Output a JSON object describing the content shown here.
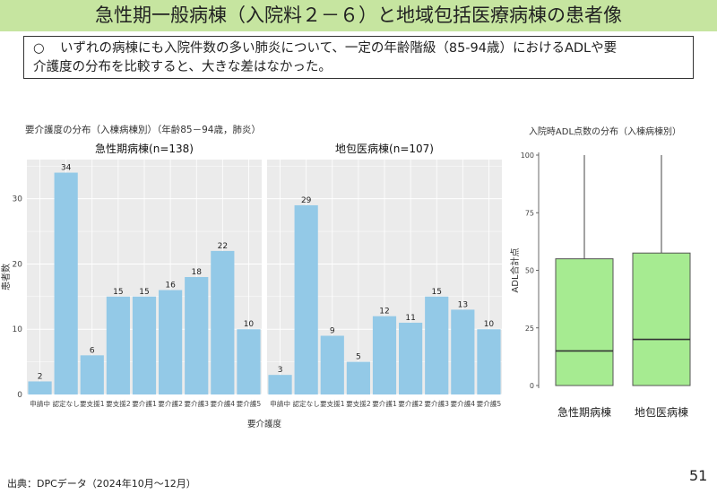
{
  "title": "急性期一般病棟（入院料２－６）と地域包括医療病棟の患者像",
  "note": {
    "bullet": "○",
    "text_line1": "いずれの病棟にも入院件数の多い肺炎について、一定の年齢階級（85-94歳）におけるADLや要",
    "text_line2": "介護度の分布を比較すると、大きな差はなかった。"
  },
  "footer": {
    "source": "出典：DPCデータ（2024年10月～12月）",
    "page_number": "51"
  },
  "colors": {
    "bar": "#93c9e7",
    "box": "#a6eb91",
    "title_bg": "#c6e5a0",
    "panel": "#ebebeb",
    "grid": "#ffffff"
  },
  "chart_data": [
    {
      "type": "bar",
      "title": "要介護度の分布（入棟病棟別）（年齢85－94歳，肺炎）",
      "xlabel": "要介護度",
      "ylabel": "患者数",
      "ylim": [
        0,
        36
      ],
      "yticks": [
        0,
        10,
        20,
        30
      ],
      "categories": [
        "申請中",
        "認定なし",
        "要支援1",
        "要支援2",
        "要介護1",
        "要介護2",
        "要介護3",
        "要介護4",
        "要介護5"
      ],
      "grid": true,
      "facets": [
        {
          "name": "急性期病棟(n=138)",
          "values": [
            2,
            34,
            6,
            15,
            15,
            16,
            18,
            22,
            10
          ]
        },
        {
          "name": "地包医病棟(n=107)",
          "values": [
            3,
            29,
            9,
            5,
            12,
            11,
            15,
            13,
            10
          ]
        }
      ]
    },
    {
      "type": "box",
      "title": "入院時ADL点数の分布（入棟病棟別）",
      "ylabel": "ADL合計点",
      "ylim": [
        0,
        100
      ],
      "yticks": [
        0,
        25,
        50,
        75,
        100
      ],
      "grid": false,
      "categories": [
        "急性期病棟",
        "地包医病棟"
      ],
      "series": [
        {
          "category": "急性期病棟",
          "min": 0,
          "q1": 0,
          "median": 15,
          "q3": 55,
          "max": 100
        },
        {
          "category": "地包医病棟",
          "min": 0,
          "q1": 0,
          "median": 20,
          "q3": 57.5,
          "max": 100
        }
      ]
    }
  ]
}
